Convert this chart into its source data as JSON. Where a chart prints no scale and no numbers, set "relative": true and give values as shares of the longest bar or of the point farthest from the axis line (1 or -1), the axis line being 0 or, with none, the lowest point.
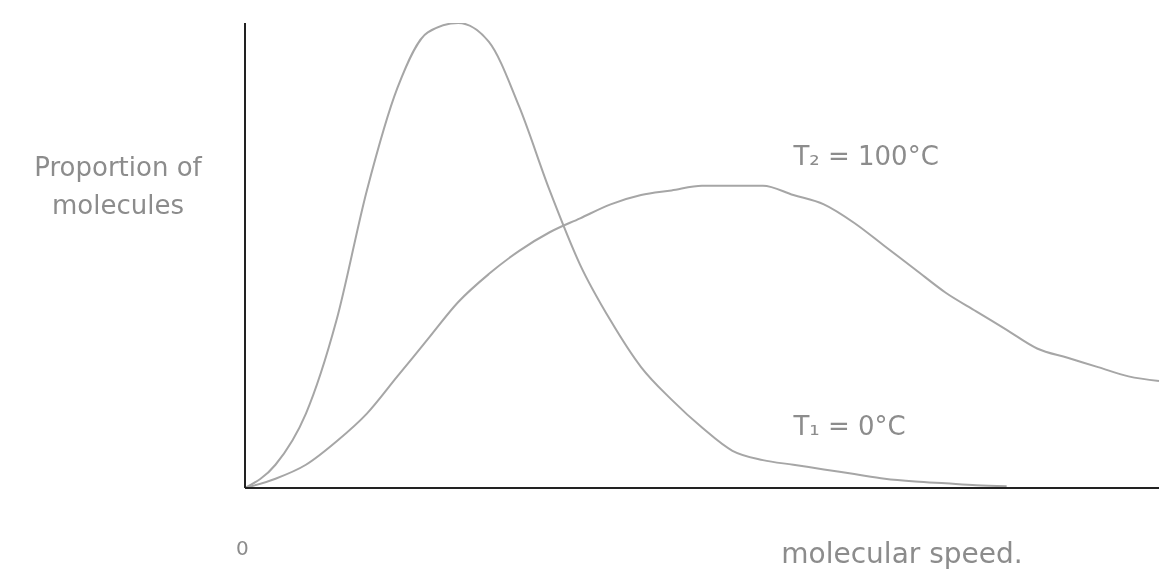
{
  "chart_data": {
    "type": "line",
    "relative": true,
    "xlabel": "molecular speed.",
    "ylabel": "Proportion of molecules",
    "annotations": [
      "0"
    ],
    "categories": [
      null,
      null,
      null,
      null,
      null,
      null,
      null,
      null,
      null,
      null,
      null,
      null,
      null,
      null,
      null,
      null,
      null,
      null,
      null,
      null,
      null,
      null,
      null,
      null,
      null,
      null,
      null,
      null,
      null,
      null,
      null
    ],
    "series": [
      {
        "name": "T₁ = 0°C",
        "color": "#a6a6a6",
        "values": [
          0,
          0.05,
          0.16,
          0.36,
          0.64,
          0.86,
          0.98,
          1,
          0.96,
          0.82,
          0.64,
          0.48,
          0.36,
          0.26,
          0.19,
          0.13,
          0.08,
          0.06,
          0.05,
          0.04,
          0.03,
          0.02,
          0.014,
          0.01,
          0.006,
          0.004,
          null,
          null,
          null,
          null,
          null
        ]
      },
      {
        "name": "T₂ = 100°C",
        "color": "#a6a6a6",
        "values": [
          0,
          0.02,
          0.05,
          0.1,
          0.16,
          0.24,
          0.32,
          0.4,
          0.46,
          0.51,
          0.55,
          0.58,
          0.61,
          0.63,
          0.64,
          0.65,
          0.65,
          0.65,
          0.63,
          0.61,
          0.57,
          0.52,
          0.47,
          0.42,
          0.38,
          0.34,
          0.3,
          0.28,
          0.26,
          0.24,
          0.23
        ]
      }
    ],
    "grid": false,
    "legend": false,
    "marker": "none",
    "line_style": "solid"
  }
}
